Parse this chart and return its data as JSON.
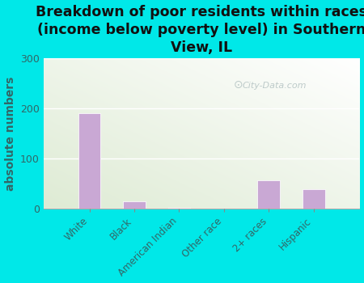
{
  "title": "Breakdown of poor residents within races\n(income below poverty level) in Southern\nView, IL",
  "categories": [
    "White",
    "Black",
    "American Indian",
    "Other race",
    "2+ races",
    "Hispanic"
  ],
  "values": [
    190,
    15,
    2,
    0,
    57,
    38
  ],
  "bar_color": "#c9a8d4",
  "bar_edgecolor": "#ffffff",
  "ylabel": "absolute numbers",
  "ylim": [
    0,
    300
  ],
  "yticks": [
    0,
    100,
    200,
    300
  ],
  "background_color": "#00e8e8",
  "plot_bg_topleft": "#deebd4",
  "plot_bg_topright": "#f0f5ea",
  "plot_bg_bottom": "#f5f8f0",
  "watermark": "City-Data.com",
  "title_fontsize": 12.5,
  "ylabel_fontsize": 10,
  "tick_label_color": "#336666",
  "title_color": "#111111"
}
